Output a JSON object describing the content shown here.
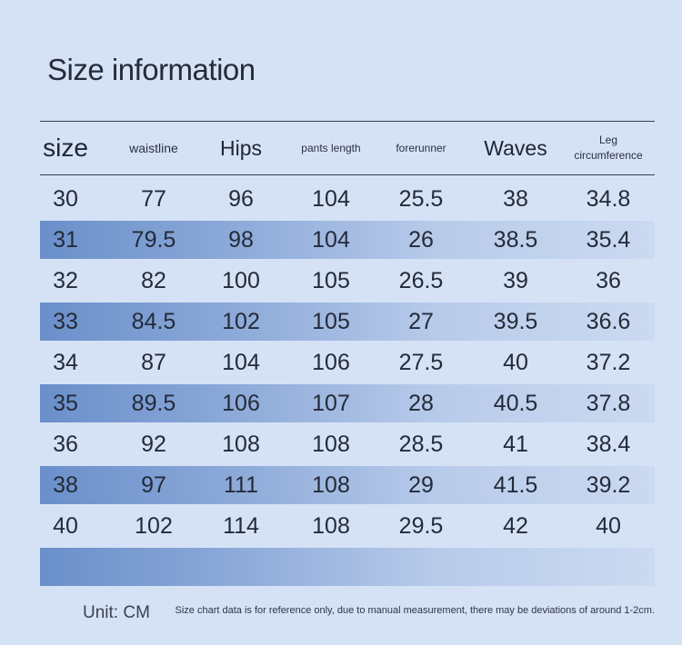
{
  "title": "Size information",
  "columns": [
    {
      "label": "size",
      "style": "big"
    },
    {
      "label": "waistline",
      "style": "small"
    },
    {
      "label": "Hips",
      "style": "med"
    },
    {
      "label": "pants length",
      "style": "tiny"
    },
    {
      "label": "forerunner",
      "style": "tiny"
    },
    {
      "label": "Waves",
      "style": "med"
    },
    {
      "label": "Leg\ncircumference",
      "style": "tiny"
    }
  ],
  "rows": [
    [
      "30",
      "77",
      "96",
      "104",
      "25.5",
      "38",
      "34.8"
    ],
    [
      "31",
      "79.5",
      "98",
      "104",
      "26",
      "38.5",
      "35.4"
    ],
    [
      "32",
      "82",
      "100",
      "105",
      "26.5",
      "39",
      "36"
    ],
    [
      "33",
      "84.5",
      "102",
      "105",
      "27",
      "39.5",
      "36.6"
    ],
    [
      "34",
      "87",
      "104",
      "106",
      "27.5",
      "40",
      "37.2"
    ],
    [
      "35",
      "89.5",
      "106",
      "107",
      "28",
      "40.5",
      "37.8"
    ],
    [
      "36",
      "92",
      "108",
      "108",
      "28.5",
      "41",
      "38.4"
    ],
    [
      "38",
      "97",
      "111",
      "108",
      "29",
      "41.5",
      "39.2"
    ],
    [
      "40",
      "102",
      "114",
      "108",
      "29.5",
      "42",
      "40"
    ],
    [
      "",
      "",
      "",
      "",
      "",
      "",
      ""
    ]
  ],
  "footer": {
    "unit": "Unit: CM",
    "note": "Size chart data is for reference only, due to manual measurement, there may be deviations of around 1-2cm."
  }
}
